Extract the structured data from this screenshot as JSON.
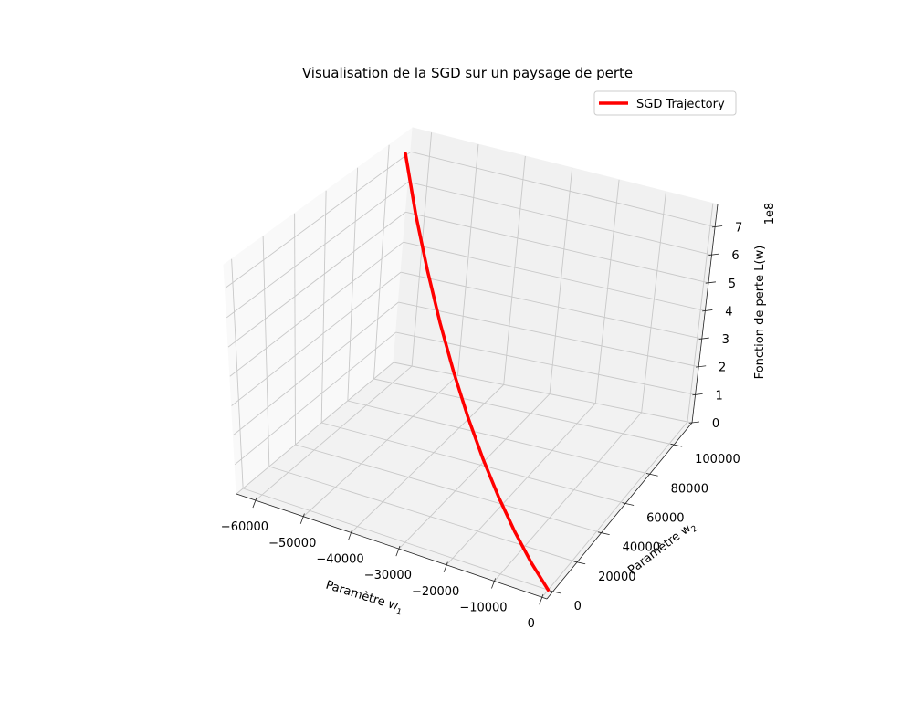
{
  "chart_data": {
    "type": "line-3d",
    "title": "Visualisation de la SGD sur un paysage de perte",
    "xlabel": "Paramètre w",
    "xlabel_sub": "1",
    "ylabel": "Paramètre w",
    "ylabel_sub": "2",
    "zlabel": "Fonction de perte L(w)",
    "z_offset_label": "1e8",
    "x_ticks": [
      "−60000",
      "−50000",
      "−40000",
      "−30000",
      "−20000",
      "−10000",
      "0"
    ],
    "y_ticks": [
      "0",
      "20000",
      "40000",
      "60000",
      "80000",
      "100000"
    ],
    "z_ticks": [
      "0",
      "1",
      "2",
      "3",
      "4",
      "5",
      "6",
      "7"
    ],
    "xlim": [
      -64000,
      1000
    ],
    "ylim": [
      -5000,
      115000
    ],
    "zlim": [
      0,
      7.8
    ],
    "grid": true,
    "legend": {
      "position": "top-right",
      "entries": [
        "SGD Trajectory"
      ]
    },
    "series": [
      {
        "name": "SGD Trajectory",
        "color": "#ff0000",
        "x": [
          -62000,
          -55800,
          -49600,
          -43400,
          -37200,
          -31000,
          -24800,
          -18600,
          -12400,
          -6200,
          0
        ],
        "y": [
          105000,
          94500,
          84000,
          73500,
          63000,
          52500,
          42000,
          31500,
          21000,
          10500,
          0
        ],
        "z": [
          7.4,
          6.0,
          4.78,
          3.68,
          2.71,
          1.88,
          1.2,
          0.68,
          0.3,
          0.07,
          0.0
        ]
      }
    ]
  }
}
